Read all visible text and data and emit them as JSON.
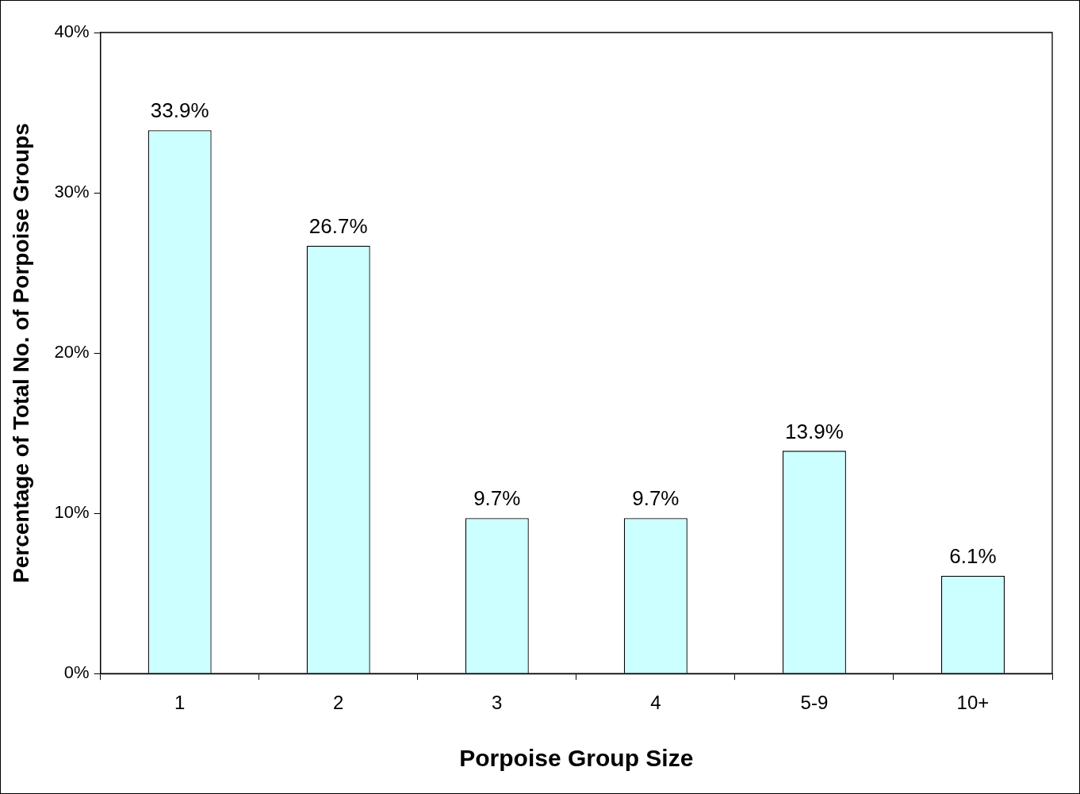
{
  "chart_data": {
    "type": "bar",
    "xlabel": "Porpoise Group Size",
    "ylabel": "Percentage of Total No. of Porpoise Groups",
    "categories": [
      "1",
      "2",
      "3",
      "4",
      "5-9",
      "10+"
    ],
    "values": [
      33.9,
      26.7,
      9.7,
      9.7,
      13.9,
      6.1
    ],
    "value_labels": [
      "33.9%",
      "26.7%",
      "9.7%",
      "9.7%",
      "13.9%",
      "6.1%"
    ],
    "color": "#ccffff",
    "ylim": [
      0,
      40
    ],
    "yticks": [
      {
        "value": 0,
        "label": "0%"
      },
      {
        "value": 10,
        "label": "10%"
      },
      {
        "value": 20,
        "label": "20%"
      },
      {
        "value": 30,
        "label": "30%"
      },
      {
        "value": 40,
        "label": "40%"
      }
    ],
    "grid": false,
    "legend": false
  }
}
